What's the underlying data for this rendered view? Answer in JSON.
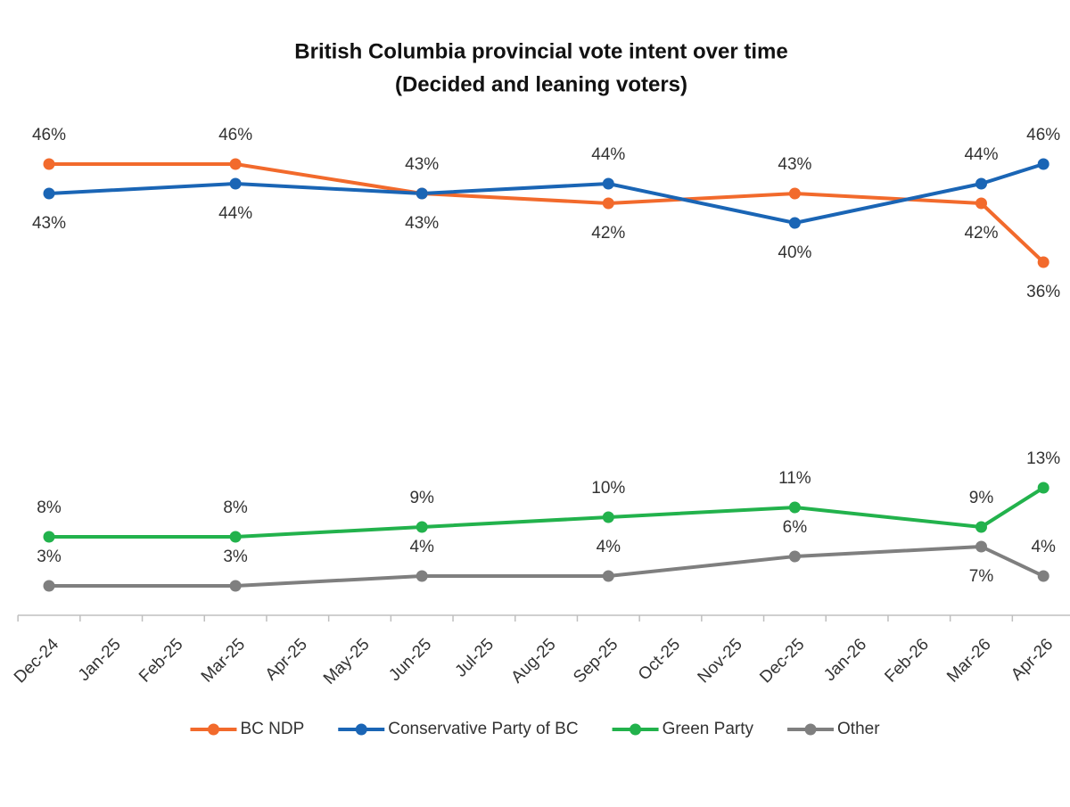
{
  "chart_data": {
    "type": "line",
    "title": "British Columbia provincial vote intent over time",
    "subtitle": "(Decided and leaning voters)",
    "xticks": [
      "Dec-24",
      "Jan-25",
      "Feb-25",
      "Mar-25",
      "Apr-25",
      "May-25",
      "Jun-25",
      "Jul-25",
      "Aug-25",
      "Sep-25",
      "Oct-25",
      "Nov-25",
      "Dec-25",
      "Jan-26",
      "Feb-26",
      "Mar-26",
      "Apr-26"
    ],
    "x": [
      "Dec-24",
      "Mar-25",
      "Jun-25",
      "Sep-25",
      "Dec-25",
      "Mar-26",
      "Apr-26"
    ],
    "ylim": [
      0,
      50
    ],
    "legend": "bottom",
    "series": [
      {
        "name": "BC NDP",
        "color": "#f26a2c",
        "values": [
          46,
          46,
          43,
          42,
          43,
          42,
          36
        ],
        "value_labels": [
          "46%",
          "46%",
          "43%",
          "42%",
          "43%",
          "42%",
          "36%"
        ]
      },
      {
        "name": "Conservative Party of BC",
        "color": "#1a65b5",
        "values": [
          43,
          44,
          43,
          44,
          40,
          44,
          46
        ],
        "value_labels": [
          "43%",
          "44%",
          "43%",
          "44%",
          "40%",
          "44%",
          "46%"
        ]
      },
      {
        "name": "Green Party",
        "color": "#22b24c",
        "values": [
          8,
          8,
          9,
          10,
          11,
          9,
          13
        ],
        "value_labels": [
          "8%",
          "8%",
          "9%",
          "10%",
          "11%",
          "9%",
          "13%"
        ]
      },
      {
        "name": "Other",
        "color": "#7f7f7f",
        "values": [
          3,
          3,
          4,
          4,
          6,
          7,
          4
        ],
        "value_labels": [
          "3%",
          "3%",
          "4%",
          "4%",
          "6%",
          "7%",
          "4%"
        ]
      }
    ]
  }
}
